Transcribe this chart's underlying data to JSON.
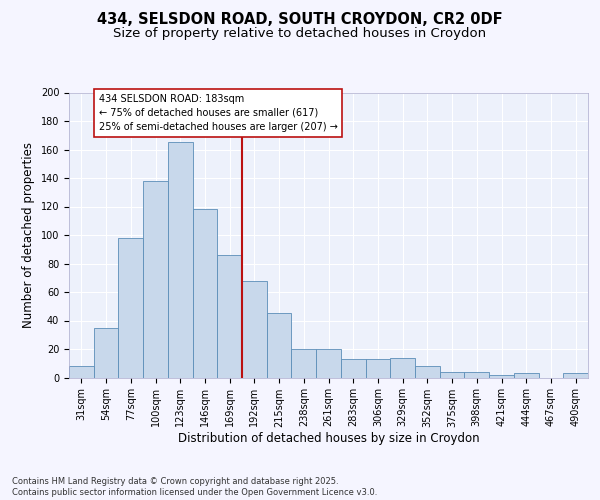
{
  "title_line1": "434, SELSDON ROAD, SOUTH CROYDON, CR2 0DF",
  "title_line2": "Size of property relative to detached houses in Croydon",
  "xlabel": "Distribution of detached houses by size in Croydon",
  "ylabel": "Number of detached properties",
  "bar_labels": [
    "31sqm",
    "54sqm",
    "77sqm",
    "100sqm",
    "123sqm",
    "146sqm",
    "169sqm",
    "192sqm",
    "215sqm",
    "238sqm",
    "261sqm",
    "283sqm",
    "306sqm",
    "329sqm",
    "352sqm",
    "375sqm",
    "398sqm",
    "421sqm",
    "444sqm",
    "467sqm",
    "490sqm"
  ],
  "bar_values": [
    8,
    35,
    98,
    138,
    165,
    118,
    86,
    68,
    45,
    20,
    20,
    13,
    13,
    14,
    8,
    4,
    4,
    2,
    3,
    0,
    3
  ],
  "bar_color": "#c8d8eb",
  "bar_edge_color": "#5b8db8",
  "vline_index": 7,
  "vline_color": "#bb1111",
  "annotation_text": "434 SELSDON ROAD: 183sqm\n← 75% of detached houses are smaller (617)\n25% of semi-detached houses are larger (207) →",
  "annotation_box_facecolor": "#ffffff",
  "annotation_box_edgecolor": "#bb1111",
  "ylim": [
    0,
    200
  ],
  "yticks": [
    0,
    20,
    40,
    60,
    80,
    100,
    120,
    140,
    160,
    180,
    200
  ],
  "plot_bg_color": "#edf1fb",
  "fig_bg_color": "#f5f5ff",
  "grid_color": "#ffffff",
  "title_fontsize": 10.5,
  "subtitle_fontsize": 9.5,
  "axis_label_fontsize": 8.5,
  "tick_fontsize": 7,
  "annotation_fontsize": 7,
  "footer_fontsize": 6,
  "footer_text": "Contains HM Land Registry data © Crown copyright and database right 2025.\nContains public sector information licensed under the Open Government Licence v3.0."
}
